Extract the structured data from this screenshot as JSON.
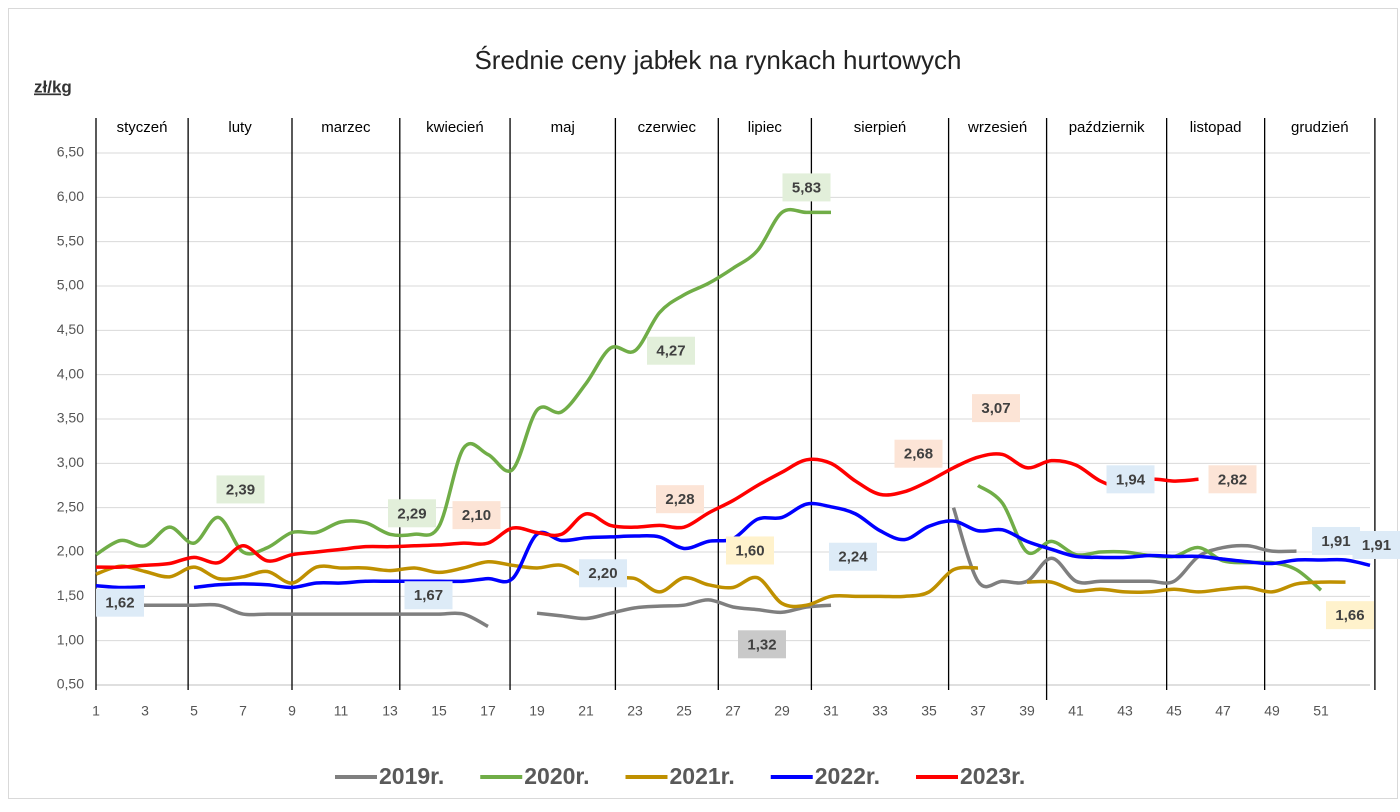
{
  "chart_data": {
    "type": "line",
    "title": "Średnie ceny jabłek na rynkach hurtowych",
    "y_label": "zł/kg",
    "months": [
      "styczeń",
      "luty",
      "marzec",
      "kwiecień",
      "maj",
      "czerwiec",
      "lipiec",
      "sierpień",
      "wrzesień",
      "październik",
      "listopad",
      "grudzień"
    ],
    "x": [
      1,
      2,
      3,
      4,
      5,
      6,
      7,
      8,
      9,
      10,
      11,
      12,
      13,
      14,
      15,
      16,
      17,
      18,
      19,
      20,
      21,
      22,
      23,
      24,
      25,
      26,
      27,
      28,
      29,
      30,
      31,
      32,
      33,
      34,
      35,
      36,
      37,
      38,
      39,
      40,
      41,
      42,
      43,
      44,
      45,
      46,
      47,
      48,
      49,
      50,
      51,
      52,
      53
    ],
    "xlim": [
      1,
      53
    ],
    "xticks": [
      1,
      3,
      5,
      7,
      9,
      11,
      13,
      15,
      17,
      19,
      21,
      23,
      25,
      27,
      29,
      31,
      33,
      35,
      37,
      39,
      41,
      43,
      45,
      47,
      49,
      51
    ],
    "ylim": [
      0.5,
      6.5
    ],
    "yticks": [
      {
        "value": 0.5,
        "label": "0,50"
      },
      {
        "value": 1,
        "label": "1,00"
      },
      {
        "value": 1.5,
        "label": "1,50"
      },
      {
        "value": 2,
        "label": "2,00"
      },
      {
        "value": 2.5,
        "label": "2,50"
      },
      {
        "value": 3,
        "label": "3,00"
      },
      {
        "value": 3.5,
        "label": "3,50"
      },
      {
        "value": 4,
        "label": "4,00"
      },
      {
        "value": 4.5,
        "label": "4,50"
      },
      {
        "value": 5,
        "label": "5,00"
      },
      {
        "value": 5.5,
        "label": "5,50"
      },
      {
        "value": 6,
        "label": "6,00"
      },
      {
        "value": 6.5,
        "label": "6,50"
      }
    ],
    "grid": true,
    "smooth": true,
    "legend": "bottom",
    "series": [
      {
        "name": "2019r.",
        "color": "#7f7f7f",
        "label_fill": "#c9c9c9",
        "values": [
          1.4,
          1.4,
          1.4,
          1.4,
          1.4,
          1.4,
          1.3,
          1.3,
          1.3,
          1.3,
          1.3,
          1.3,
          1.3,
          1.3,
          1.3,
          1.3,
          1.16,
          null,
          1.31,
          1.28,
          1.25,
          1.31,
          1.37,
          1.39,
          1.4,
          1.46,
          1.38,
          1.35,
          1.32,
          1.38,
          1.4,
          null,
          null,
          null,
          null,
          2.5,
          1.67,
          1.67,
          1.67,
          1.93,
          1.67,
          1.67,
          1.67,
          1.67,
          1.67,
          1.95,
          2.05,
          2.07,
          2.01,
          2.01,
          null,
          null,
          null
        ],
        "value_labels": [
          null,
          null,
          null,
          null,
          null,
          null,
          null,
          null,
          null,
          null,
          null,
          null,
          null,
          null,
          null,
          null,
          null,
          null,
          null,
          null,
          null,
          null,
          null,
          null,
          null,
          null,
          null,
          null,
          "1,32",
          null,
          null,
          null,
          null,
          null,
          null,
          null,
          null,
          null,
          null,
          null,
          null,
          null,
          null,
          null,
          null,
          null,
          null,
          null,
          null,
          null,
          null,
          null,
          null
        ]
      },
      {
        "name": "2020r.",
        "color": "#70ad47",
        "label_fill": "#e2efda",
        "values": [
          1.97,
          2.13,
          2.07,
          2.28,
          2.1,
          2.39,
          2.0,
          2.05,
          2.22,
          2.22,
          2.34,
          2.33,
          2.2,
          2.2,
          2.29,
          3.17,
          3.1,
          2.93,
          3.6,
          3.58,
          3.9,
          4.3,
          4.27,
          4.7,
          4.9,
          5.03,
          5.2,
          5.4,
          5.83,
          5.83,
          5.83,
          null,
          null,
          null,
          null,
          null,
          2.75,
          2.55,
          2.0,
          2.12,
          1.97,
          2.0,
          2.0,
          1.96,
          1.95,
          2.05,
          1.9,
          1.88,
          1.88,
          1.8,
          1.57,
          null,
          null
        ],
        "value_labels": [
          null,
          null,
          null,
          null,
          null,
          "2,39",
          null,
          null,
          null,
          null,
          null,
          null,
          null,
          null,
          "2,29",
          null,
          null,
          null,
          null,
          null,
          null,
          null,
          "4,27",
          null,
          null,
          null,
          null,
          null,
          null,
          "5,83",
          null,
          null,
          null,
          null,
          null,
          null,
          null,
          null,
          null,
          null,
          null,
          null,
          null,
          null,
          null,
          null,
          null,
          null,
          null,
          null,
          null,
          null,
          null
        ]
      },
      {
        "name": "2021r.",
        "color": "#bf9000",
        "label_fill": "#fff2cc",
        "values": [
          1.75,
          1.84,
          1.78,
          1.72,
          1.83,
          1.7,
          1.72,
          1.78,
          1.65,
          1.83,
          1.82,
          1.82,
          1.79,
          1.82,
          1.77,
          1.82,
          1.89,
          1.85,
          1.82,
          1.85,
          1.72,
          1.7,
          1.7,
          1.55,
          1.71,
          1.63,
          1.6,
          1.71,
          1.42,
          1.4,
          1.5,
          1.5,
          1.5,
          1.5,
          1.55,
          1.8,
          1.82,
          null,
          1.66,
          1.66,
          1.56,
          1.58,
          1.55,
          1.55,
          1.58,
          1.55,
          1.58,
          1.6,
          1.55,
          1.64,
          1.66,
          1.66,
          null
        ],
        "value_labels": [
          null,
          null,
          null,
          null,
          null,
          null,
          null,
          null,
          null,
          null,
          null,
          null,
          null,
          null,
          null,
          null,
          null,
          null,
          null,
          null,
          null,
          null,
          null,
          null,
          null,
          null,
          "1,60",
          null,
          null,
          null,
          null,
          null,
          null,
          null,
          null,
          null,
          null,
          null,
          null,
          null,
          null,
          null,
          null,
          null,
          null,
          null,
          null,
          null,
          null,
          null,
          "1,66",
          null,
          null
        ]
      },
      {
        "name": "2022r.",
        "color": "#0000ff",
        "label_fill": "#ddebf7",
        "values": [
          1.62,
          1.6,
          1.61,
          null,
          1.6,
          1.63,
          1.64,
          1.63,
          1.6,
          1.65,
          1.65,
          1.67,
          1.67,
          1.67,
          1.67,
          1.67,
          1.7,
          1.7,
          2.2,
          2.13,
          2.16,
          2.17,
          2.18,
          2.17,
          2.04,
          2.12,
          2.15,
          2.37,
          2.39,
          2.54,
          2.51,
          2.43,
          2.24,
          2.14,
          2.29,
          2.35,
          2.24,
          2.25,
          2.12,
          2.03,
          1.95,
          1.94,
          1.94,
          1.96,
          1.95,
          1.95,
          1.92,
          1.89,
          1.87,
          1.91,
          1.91,
          1.91,
          1.85
        ],
        "value_labels": [
          "1,62",
          null,
          null,
          null,
          null,
          null,
          null,
          null,
          null,
          null,
          null,
          null,
          null,
          "1,67",
          null,
          null,
          null,
          null,
          "2,20",
          null,
          null,
          null,
          null,
          null,
          null,
          null,
          null,
          null,
          null,
          null,
          null,
          null,
          "2,24",
          null,
          null,
          null,
          null,
          null,
          null,
          null,
          null,
          "1,94",
          null,
          null,
          null,
          null,
          null,
          null,
          null,
          null,
          "1,91",
          "1,91",
          null
        ]
      },
      {
        "name": "2023r.",
        "color": "#ff0000",
        "label_fill": "#fce4d6",
        "values": [
          1.83,
          1.83,
          1.85,
          1.87,
          1.94,
          1.88,
          2.07,
          1.9,
          1.97,
          2.0,
          2.03,
          2.06,
          2.06,
          2.07,
          2.08,
          2.1,
          2.1,
          2.27,
          2.22,
          2.2,
          2.43,
          2.3,
          2.28,
          2.3,
          2.28,
          2.44,
          2.58,
          2.75,
          2.9,
          3.04,
          3.0,
          2.8,
          2.65,
          2.68,
          2.8,
          2.95,
          3.07,
          3.1,
          2.95,
          3.03,
          2.98,
          2.8,
          2.72,
          2.82,
          2.8,
          2.82,
          null,
          null,
          null,
          null,
          null,
          null,
          null
        ],
        "value_labels": [
          null,
          null,
          null,
          null,
          null,
          null,
          null,
          null,
          null,
          null,
          null,
          null,
          null,
          null,
          null,
          "2,10",
          null,
          null,
          null,
          null,
          null,
          null,
          null,
          null,
          "2,28",
          null,
          null,
          null,
          null,
          null,
          null,
          null,
          null,
          "2,68",
          null,
          null,
          "3,07",
          null,
          null,
          null,
          null,
          null,
          null,
          null,
          null,
          "2,82",
          null,
          null,
          null,
          null,
          null,
          null,
          null
        ]
      }
    ]
  }
}
